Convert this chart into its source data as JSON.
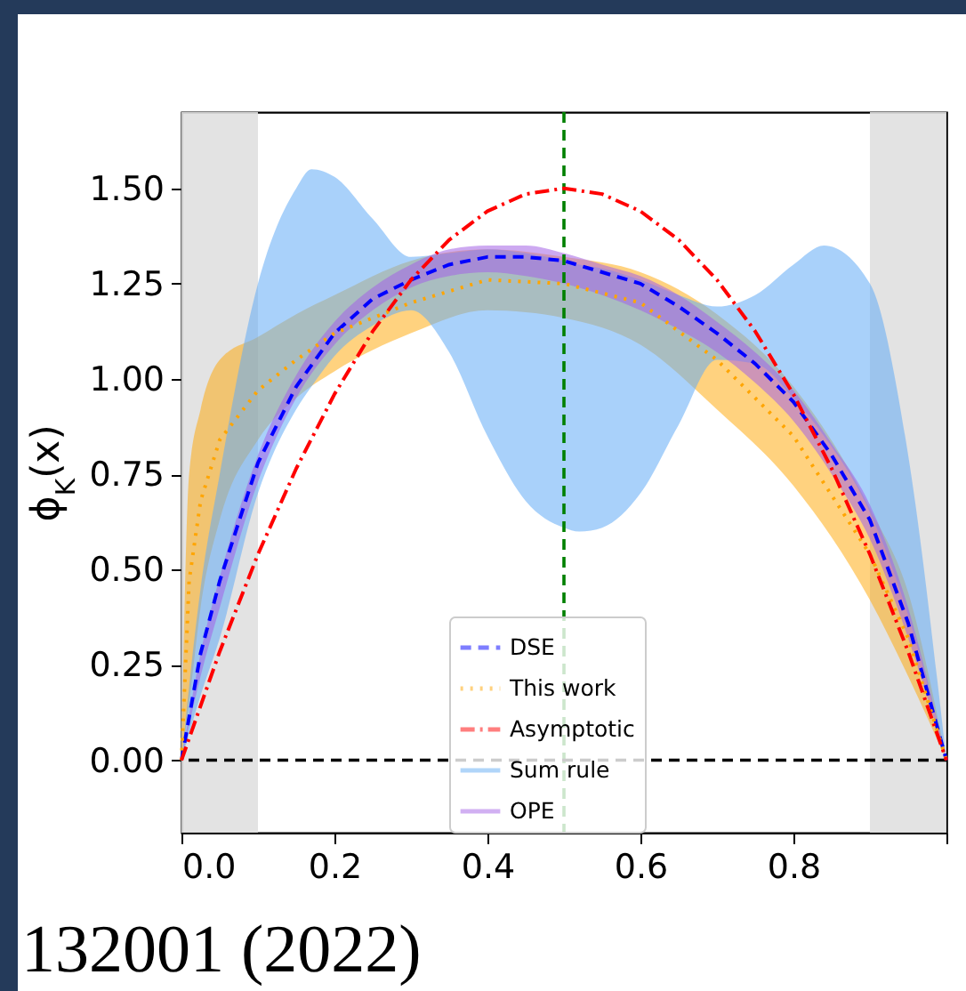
{
  "chart_data": {
    "type": "line",
    "ylabel": "ϕ$_{K}$(x)",
    "xlim": [
      0,
      1
    ],
    "ylim": [
      -0.19,
      1.7
    ],
    "xticks": [
      {
        "value": 0,
        "label": "0.0"
      },
      {
        "value": 0.2,
        "label": "0.2"
      },
      {
        "value": 0.4,
        "label": "0.4"
      },
      {
        "value": 0.6,
        "label": "0.6"
      },
      {
        "value": 0.8,
        "label": "0.8"
      },
      {
        "value": 1,
        "label": null
      }
    ],
    "yticks": [
      {
        "value": 0,
        "label": "0.00"
      },
      {
        "value": 0.25,
        "label": "0.25"
      },
      {
        "value": 0.5,
        "label": "0.50"
      },
      {
        "value": 0.75,
        "label": "0.75"
      },
      {
        "value": 1,
        "label": "1.00"
      },
      {
        "value": 1.25,
        "label": "1.25"
      },
      {
        "value": 1.5,
        "label": "1.50"
      }
    ],
    "grid": false,
    "legend": "bottom",
    "marker": "none",
    "series": [
      {
        "name": "DSE",
        "type": "line",
        "line_style": "dashed",
        "color": "#0000ff",
        "x": [
          0,
          0.025,
          0.05,
          0.1,
          0.15,
          0.2,
          0.25,
          0.3,
          0.35,
          0.4,
          0.45,
          0.5,
          0.55,
          0.6,
          0.65,
          0.7,
          0.75,
          0.8,
          0.85,
          0.9,
          0.95,
          1
        ],
        "values": [
          0,
          0.28,
          0.47,
          0.78,
          0.98,
          1.12,
          1.21,
          1.26,
          1.3,
          1.32,
          1.32,
          1.31,
          1.28,
          1.25,
          1.19,
          1.12,
          1.04,
          0.94,
          0.8,
          0.63,
          0.36,
          0
        ]
      },
      {
        "name": "This work",
        "type": "line",
        "line_style": "dotted",
        "color": "#ffa500",
        "x": [
          0,
          0.01,
          0.025,
          0.05,
          0.1,
          0.15,
          0.2,
          0.3,
          0.4,
          0.5,
          0.6,
          0.7,
          0.8,
          0.9,
          0.95,
          1
        ],
        "values": [
          0,
          0.47,
          0.68,
          0.84,
          0.97,
          1.05,
          1.12,
          1.2,
          1.26,
          1.25,
          1.2,
          1.05,
          0.85,
          0.54,
          0.32,
          0
        ],
        "lower": [
          0,
          0.15,
          0.4,
          0.63,
          0.84,
          0.95,
          1.02,
          1.12,
          1.18,
          1.16,
          1.09,
          0.92,
          0.72,
          0.42,
          0.22,
          0
        ],
        "upper": [
          0,
          0.75,
          0.92,
          1.05,
          1.11,
          1.17,
          1.22,
          1.31,
          1.34,
          1.32,
          1.28,
          1.17,
          0.98,
          0.66,
          0.44,
          0
        ]
      },
      {
        "name": "Asymptotic",
        "type": "line",
        "line_style": "dashdot",
        "color": "#ff0000",
        "x": [
          0,
          0.05,
          0.1,
          0.15,
          0.2,
          0.25,
          0.3,
          0.35,
          0.4,
          0.45,
          0.5,
          0.55,
          0.6,
          0.65,
          0.7,
          0.75,
          0.8,
          0.85,
          0.9,
          0.95,
          1
        ],
        "values": [
          0,
          0.285,
          0.54,
          0.765,
          0.96,
          1.125,
          1.26,
          1.365,
          1.44,
          1.485,
          1.5,
          1.485,
          1.44,
          1.365,
          1.26,
          1.125,
          0.96,
          0.765,
          0.54,
          0.285,
          0
        ]
      },
      {
        "name": "Sum rule",
        "type": "area",
        "color": "#63acf5",
        "x": [
          0,
          0.025,
          0.05,
          0.1,
          0.15,
          0.17,
          0.2,
          0.25,
          0.3,
          0.35,
          0.4,
          0.45,
          0.5,
          0.52,
          0.55,
          0.6,
          0.65,
          0.7,
          0.75,
          0.8,
          0.84,
          0.9,
          0.95,
          1
        ],
        "values": [
          null,
          null,
          null,
          null,
          null,
          null,
          null,
          null,
          null,
          null,
          null,
          null,
          null,
          null,
          null,
          null,
          null,
          null,
          null,
          null,
          null,
          null,
          null,
          null
        ],
        "lower": [
          0,
          0.17,
          0.32,
          0.7,
          0.92,
          0.98,
          1.06,
          1.14,
          1.18,
          1.07,
          0.85,
          0.68,
          0.61,
          0.6,
          0.61,
          0.7,
          0.88,
          1.05,
          1.04,
          0.95,
          0.85,
          0.65,
          0.38,
          0
        ],
        "upper": [
          0,
          0.45,
          0.75,
          1.25,
          1.5,
          1.55,
          1.53,
          1.42,
          1.32,
          1.33,
          1.34,
          1.33,
          1.31,
          1.3,
          1.29,
          1.26,
          1.22,
          1.19,
          1.22,
          1.3,
          1.35,
          1.25,
          0.8,
          0
        ]
      },
      {
        "name": "OPE",
        "type": "area",
        "color": "#a463e6",
        "x": [
          0,
          0.025,
          0.05,
          0.1,
          0.15,
          0.2,
          0.25,
          0.3,
          0.35,
          0.4,
          0.45,
          0.5,
          0.55,
          0.6,
          0.65,
          0.7,
          0.75,
          0.8,
          0.85,
          0.9,
          0.95,
          1
        ],
        "values": [
          null,
          null,
          null,
          null,
          null,
          null,
          null,
          null,
          null,
          null,
          null,
          null,
          null,
          null,
          null,
          null,
          null,
          null,
          null,
          null,
          null,
          null
        ],
        "lower": [
          0,
          0.22,
          0.4,
          0.73,
          0.95,
          1.09,
          1.18,
          1.24,
          1.27,
          1.28,
          1.27,
          1.25,
          1.22,
          1.18,
          1.13,
          1.07,
          0.99,
          0.89,
          0.75,
          0.58,
          0.32,
          0
        ],
        "upper": [
          0,
          0.28,
          0.48,
          0.8,
          1.01,
          1.15,
          1.24,
          1.3,
          1.34,
          1.35,
          1.35,
          1.33,
          1.3,
          1.27,
          1.22,
          1.15,
          1.07,
          0.97,
          0.83,
          0.67,
          0.4,
          0
        ]
      }
    ],
    "bands": [
      {
        "axis": "x",
        "from": 0,
        "to": 0.1,
        "color": "#e0e0e0"
      },
      {
        "axis": "x",
        "from": 0.9,
        "to": 1,
        "color": "#e0e0e0"
      }
    ],
    "ref_lines": [
      {
        "axis": "x",
        "value": 0.5,
        "color": "#008000",
        "line_style": "dashed"
      },
      {
        "axis": "y",
        "value": 0,
        "color": "#000000",
        "line_style": "dashed"
      }
    ],
    "annotations": [
      "132001 (2022)"
    ]
  }
}
